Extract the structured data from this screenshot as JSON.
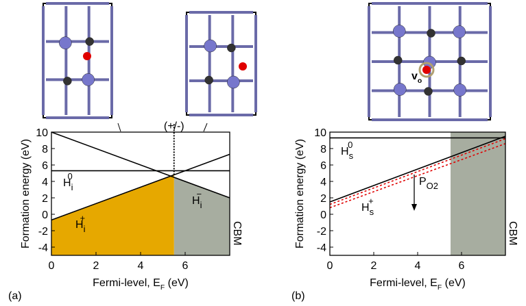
{
  "chart_data": [
    {
      "type": "line",
      "panel": "(a)",
      "xlabel": {
        "t": "Fermi-level, E",
        "sub": "F",
        "tail": " (eV)"
      },
      "ylabel": "Formation energy (eV)",
      "xlim": [
        0,
        8
      ],
      "ylim": [
        -5,
        10
      ],
      "xticks": [
        0,
        2,
        4,
        6
      ],
      "yticks": [
        -4,
        -2,
        0,
        2,
        4,
        6,
        8,
        10
      ],
      "x": [
        0,
        5.5,
        8
      ],
      "series": [
        {
          "color": "#000000",
          "values": [
            10,
            4.5,
            2
          ],
          "fill": "#a7ada0",
          "fill_x": [
            5.5,
            8
          ]
        },
        {
          "color": "#000000",
          "values": [
            -0.7,
            4.8,
            7.3
          ],
          "fill": "#e6a800",
          "fill_x": [
            0,
            5.5
          ]
        },
        {
          "color": "#000000",
          "values": [
            5.3,
            5.3,
            5.3
          ]
        }
      ],
      "vline": {
        "x": 5.5,
        "y": [
          4.8,
          10
        ],
        "label": "(+/-)"
      },
      "edge_label": "CBM",
      "annotations": [
        {
          "t": "H",
          "sub": "i",
          "sup": "0"
        },
        {
          "t": "H",
          "sub": "i",
          "sup": "+"
        },
        {
          "t": "H",
          "sub": "i",
          "sup": "−"
        }
      ]
    },
    {
      "type": "line",
      "panel": "(b)",
      "xlabel": {
        "t": "Fermi-level, E",
        "sub": "F",
        "tail": " (eV)"
      },
      "ylabel": "Formation energy (eV)",
      "xlim": [
        0,
        8
      ],
      "ylim": [
        -5,
        10
      ],
      "xticks": [
        0,
        2,
        4,
        6
      ],
      "yticks": [
        -4,
        -2,
        0,
        2,
        4,
        6,
        8,
        10
      ],
      "x": [
        0,
        8
      ],
      "shade": {
        "x": [
          5.5,
          8
        ],
        "color": "#a7ada0"
      },
      "series": [
        {
          "color": "#000000",
          "values": [
            9.3,
            9.3
          ]
        },
        {
          "color": "#e00000",
          "values": [
            1.2,
            9.2
          ],
          "dash": true
        },
        {
          "color": "#e00000",
          "values": [
            0.8,
            8.6
          ],
          "dash": true
        },
        {
          "color": "#000000",
          "values": [
            1.5,
            9.5
          ]
        }
      ],
      "edge_label": "CBM",
      "annotations": [
        {
          "t": "H",
          "sub": "s",
          "sup": "0"
        },
        {
          "t": "H",
          "sub": "s",
          "sup": "+"
        },
        {
          "t": "P",
          "sub": "O2"
        }
      ],
      "inset_label": {
        "t": "v",
        "sub": "o"
      }
    }
  ]
}
